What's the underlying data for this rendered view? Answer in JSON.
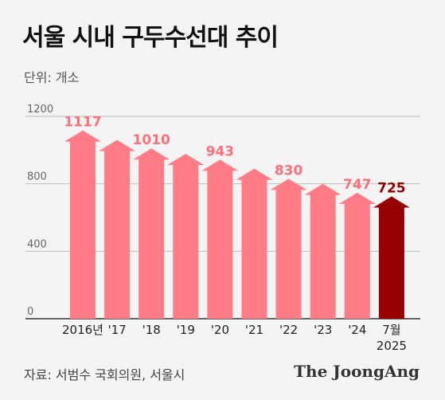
{
  "title": "서울 시내 구두수선대 추이",
  "unit_label": "단위: 개소",
  "source": "자료: 서범수 국회의원, 서울시",
  "brand": "The JoongAng",
  "colors": {
    "bar": "#ff7c86",
    "highlight_bar": "#960000",
    "label": "#ff6f7a",
    "highlight_label": "#960000",
    "grid": "#bdbdbd",
    "axis": "#333333"
  },
  "chart_data": {
    "type": "bar",
    "categories": [
      "2016년",
      "'17",
      "'18",
      "'19",
      "'20",
      "'21",
      "'22",
      "'23",
      "'24",
      "7월\n2025"
    ],
    "values": [
      1117,
      1060,
      1010,
      978,
      943,
      890,
      830,
      800,
      747,
      725
    ],
    "data_labels": [
      "1117",
      "",
      "1010",
      "",
      "943",
      "",
      "830",
      "",
      "747",
      "725"
    ],
    "highlight_index": 9,
    "yticks": [
      "0",
      "400",
      "800",
      "1200"
    ],
    "ylim": [
      0,
      1200
    ],
    "grid": true,
    "bar_shape": "upward-arrow"
  }
}
